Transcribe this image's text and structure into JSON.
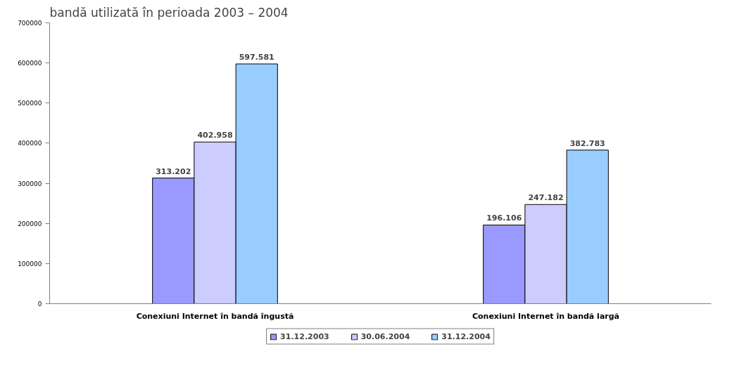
{
  "chart_data": {
    "type": "bar",
    "title": "bandă utilizată în perioada 2003 – 2004",
    "categories": [
      "Conexiuni Internet în bandă îngustă",
      "Conexiuni Internet în bandă largă"
    ],
    "series": [
      {
        "name": "31.12.2003",
        "color": "#9999ff",
        "values": [
          313202,
          196106
        ],
        "value_labels": [
          "313.202",
          "196.106"
        ]
      },
      {
        "name": "30.06.2004",
        "color": "#ccccff",
        "values": [
          402958,
          247182
        ],
        "value_labels": [
          "402.958",
          "247.182"
        ]
      },
      {
        "name": "31.12.2004",
        "color": "#99ccff",
        "values": [
          597581,
          382783
        ],
        "value_labels": [
          "597.581",
          "382.783"
        ]
      }
    ],
    "ylim": [
      0,
      700000
    ],
    "yticks": [
      0,
      100000,
      200000,
      300000,
      400000,
      500000,
      600000,
      700000
    ],
    "grid": false,
    "legend": "bottom"
  }
}
